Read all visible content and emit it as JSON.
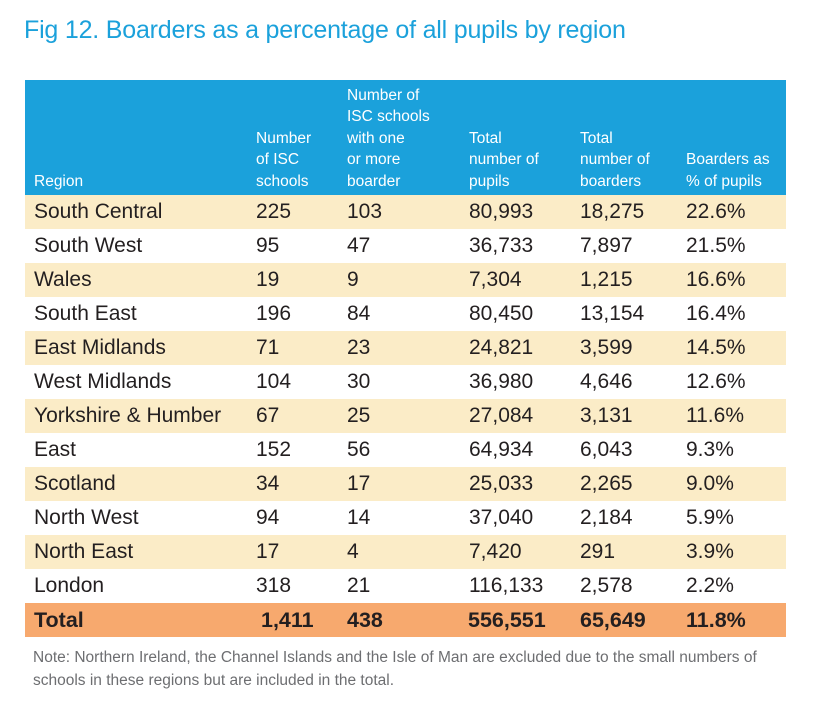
{
  "title": "Fig 12. Boarders as a percentage of all pupils by region",
  "headers": {
    "region": "Region",
    "num_schools": [
      "Number",
      "of ISC",
      "schools"
    ],
    "schools_with_boarder": [
      "Number of",
      "ISC schools",
      "with one",
      "or more",
      "boarder"
    ],
    "total_pupils": [
      "Total",
      "number of",
      "pupils"
    ],
    "total_boarders": [
      "Total",
      "number of",
      "boarders"
    ],
    "boarders_pct": [
      "Boarders as",
      "% of pupils"
    ]
  },
  "rows": [
    {
      "region": "South Central",
      "schools": "225",
      "with_boarder": "103",
      "pupils": "80,993",
      "boarders": "18,275",
      "pct": "22.6%"
    },
    {
      "region": "South West",
      "schools": "95",
      "with_boarder": "47",
      "pupils": "36,733",
      "boarders": "7,897",
      "pct": "21.5%"
    },
    {
      "region": "Wales",
      "schools": "19",
      "with_boarder": "9",
      "pupils": "7,304",
      "boarders": "1,215",
      "pct": "16.6%"
    },
    {
      "region": "South East",
      "schools": "196",
      "with_boarder": "84",
      "pupils": "80,450",
      "boarders": "13,154",
      "pct": "16.4%"
    },
    {
      "region": "East Midlands",
      "schools": "71",
      "with_boarder": "23",
      "pupils": "24,821",
      "boarders": "3,599",
      "pct": "14.5%"
    },
    {
      "region": "West Midlands",
      "schools": "104",
      "with_boarder": "30",
      "pupils": "36,980",
      "boarders": "4,646",
      "pct": "12.6%"
    },
    {
      "region": "Yorkshire & Humber",
      "schools": "67",
      "with_boarder": "25",
      "pupils": "27,084",
      "boarders": "3,131",
      "pct": "11.6%"
    },
    {
      "region": "East",
      "schools": "152",
      "with_boarder": "56",
      "pupils": "64,934",
      "boarders": "6,043",
      "pct": "9.3%"
    },
    {
      "region": "Scotland",
      "schools": "34",
      "with_boarder": "17",
      "pupils": "25,033",
      "boarders": "2,265",
      "pct": "9.0%"
    },
    {
      "region": "North West",
      "schools": "94",
      "with_boarder": "14",
      "pupils": "37,040",
      "boarders": "2,184",
      "pct": "5.9%"
    },
    {
      "region": "North East",
      "schools": "17",
      "with_boarder": "4",
      "pupils": "7,420",
      "boarders": "291",
      "pct": "3.9%"
    },
    {
      "region": "London",
      "schools": "318",
      "with_boarder": "21",
      "pupils": "116,133",
      "boarders": "2,578",
      "pct": "2.2%"
    }
  ],
  "total": {
    "region": "Total",
    "schools": "1,411",
    "with_boarder": "438",
    "pupils": "556,551",
    "boarders": "65,649",
    "pct": "11.8%"
  },
  "note": "Note: Northern Ireland, the Channel Islands and the Isle of Man are excluded due to the small numbers of schools in these regions but are included in the total.",
  "colors": {
    "accent": "#1ba1db",
    "row_shade": "#fbecc7",
    "total_row": "#f7a96e",
    "note_text": "#6d6e71"
  }
}
